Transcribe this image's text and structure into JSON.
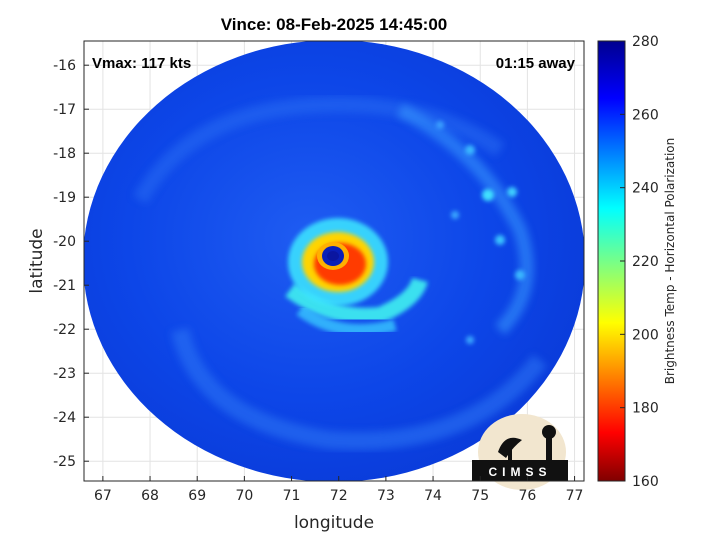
{
  "chart_data": {
    "type": "heatmap",
    "title": "Vince: 08-Feb-2025 14:45:00",
    "annotation_left": "Vmax: 117 kts",
    "annotation_right": "01:15 away",
    "xlabel": "longitude",
    "ylabel": "latitude",
    "xlim": [
      66.6,
      77.2
    ],
    "ylim": [
      -25.45,
      -15.45
    ],
    "x_ticks": [
      "67",
      "68",
      "69",
      "70",
      "71",
      "72",
      "73",
      "74",
      "75",
      "76",
      "77"
    ],
    "y_ticks": [
      "-16",
      "-17",
      "-18",
      "-19",
      "-20",
      "-21",
      "-22",
      "-23",
      "-24",
      "-25"
    ],
    "grid": true,
    "colorbar": {
      "label": "Brightness Temp - Horizontal Polarization",
      "range": [
        160,
        280
      ],
      "ticks": [
        "280",
        "260",
        "240",
        "220",
        "200",
        "180",
        "160"
      ],
      "colormap": "jet"
    },
    "storm_center": {
      "lon": 72.0,
      "lat": -20.6
    },
    "logo_text": "CIMSS",
    "colors": {
      "swath_background": "#0b45e6",
      "eyewall": "#ff3a00",
      "outer_band": "#40f0ff"
    }
  }
}
